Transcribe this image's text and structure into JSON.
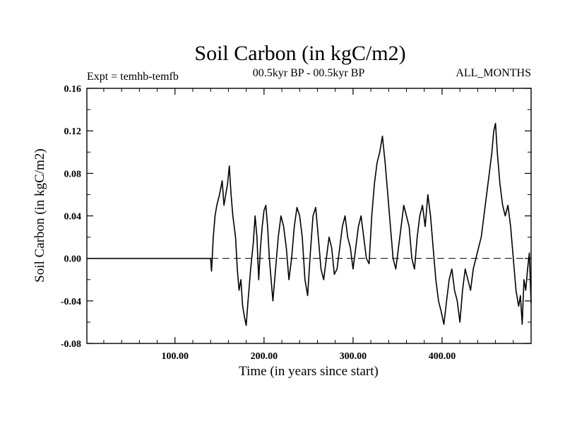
{
  "chart_data": {
    "type": "line",
    "title": "Soil Carbon (in kgC/m2)",
    "subtitle_left": "Expt = temhb-temfb",
    "subtitle_center": "00.5kyr BP - 00.5kyr BP",
    "subtitle_right": "ALL_MONTHS",
    "xlabel": "Time (in years since start)",
    "ylabel": "Soil Carbon (in kgC/m2)",
    "xlim": [
      1,
      500
    ],
    "ylim": [
      -0.08,
      0.16
    ],
    "xticks": [
      100,
      200,
      300,
      400
    ],
    "xtick_labels": [
      "100.00",
      "200.00",
      "300.00",
      "400.00"
    ],
    "yticks": [
      -0.08,
      -0.04,
      0.0,
      0.04,
      0.08,
      0.12,
      0.16
    ],
    "ytick_labels": [
      "-0.08",
      "-0.04",
      "0.00",
      "0.04",
      "0.08",
      "0.12",
      "0.16"
    ],
    "reference_line": 0.0,
    "series": [
      {
        "name": "temhb-temfb",
        "x": [
          1,
          140,
          141,
          143,
          145,
          147,
          150,
          153,
          155,
          157,
          159,
          161,
          163,
          165,
          168,
          170,
          172,
          174,
          176,
          178,
          180,
          182,
          185,
          188,
          190,
          192,
          194,
          196,
          198,
          200,
          202,
          204,
          206,
          208,
          210,
          213,
          216,
          219,
          222,
          225,
          228,
          231,
          234,
          237,
          240,
          243,
          246,
          249,
          252,
          255,
          258,
          261,
          264,
          267,
          270,
          273,
          276,
          279,
          282,
          285,
          288,
          291,
          294,
          297,
          300,
          303,
          306,
          309,
          312,
          315,
          318,
          321,
          324,
          327,
          330,
          333,
          336,
          339,
          342,
          345,
          348,
          351,
          354,
          357,
          360,
          363,
          366,
          369,
          372,
          375,
          378,
          381,
          384,
          387,
          390,
          393,
          396,
          399,
          402,
          405,
          408,
          411,
          414,
          417,
          420,
          423,
          426,
          429,
          432,
          435,
          438,
          441,
          444,
          447,
          450,
          453,
          456,
          458,
          460,
          462,
          465,
          468,
          471,
          474,
          477,
          480,
          483,
          486,
          488,
          490,
          492,
          494,
          496,
          498,
          500
        ],
        "values": [
          0.0,
          0.0,
          -0.012,
          0.02,
          0.04,
          0.05,
          0.06,
          0.073,
          0.05,
          0.06,
          0.07,
          0.087,
          0.06,
          0.04,
          0.02,
          -0.01,
          -0.03,
          -0.02,
          -0.045,
          -0.055,
          -0.063,
          -0.04,
          -0.01,
          0.015,
          0.04,
          0.02,
          -0.02,
          0.01,
          0.03,
          0.045,
          0.05,
          0.03,
          0.0,
          -0.02,
          -0.04,
          -0.01,
          0.02,
          0.04,
          0.03,
          0.01,
          -0.02,
          0.0,
          0.03,
          0.048,
          0.04,
          0.02,
          -0.02,
          -0.035,
          0.005,
          0.04,
          0.048,
          0.02,
          -0.01,
          -0.02,
          0.0,
          0.02,
          0.01,
          -0.015,
          -0.01,
          0.01,
          0.03,
          0.04,
          0.02,
          0.01,
          -0.01,
          0.01,
          0.03,
          0.04,
          0.02,
          0.0,
          -0.005,
          0.04,
          0.07,
          0.09,
          0.1,
          0.115,
          0.09,
          0.06,
          0.03,
          0.0,
          -0.01,
          0.01,
          0.03,
          0.05,
          0.04,
          0.03,
          0.0,
          -0.01,
          0.02,
          0.04,
          0.05,
          0.03,
          0.06,
          0.04,
          0.01,
          -0.02,
          -0.04,
          -0.05,
          -0.062,
          -0.04,
          -0.02,
          -0.01,
          -0.03,
          -0.04,
          -0.06,
          -0.03,
          -0.01,
          -0.02,
          -0.03,
          -0.01,
          0.0,
          0.01,
          0.02,
          0.04,
          0.06,
          0.08,
          0.1,
          0.12,
          0.127,
          0.1,
          0.07,
          0.05,
          0.04,
          0.05,
          0.03,
          0.0,
          -0.03,
          -0.045,
          -0.035,
          -0.062,
          -0.02,
          -0.03,
          -0.01,
          0.005,
          -0.042
        ]
      }
    ]
  }
}
